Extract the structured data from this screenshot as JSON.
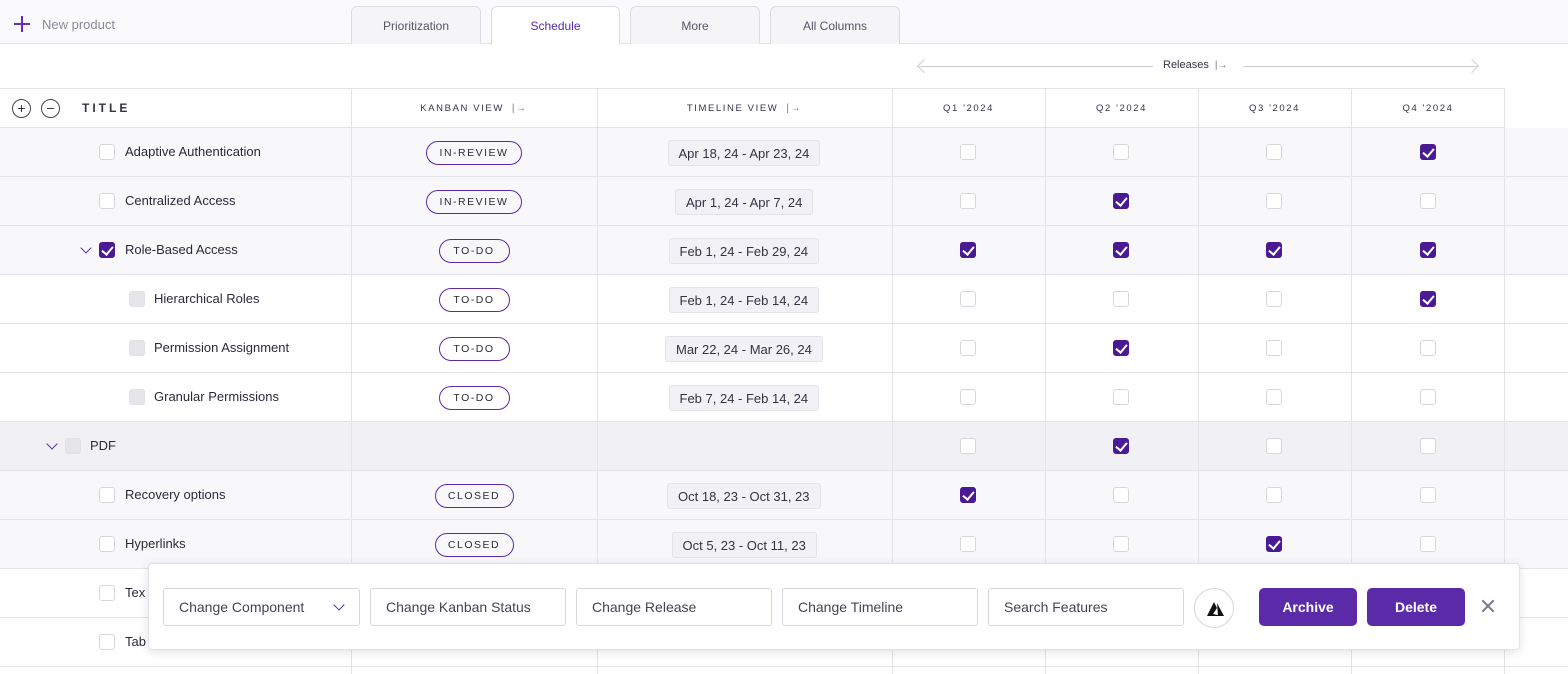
{
  "topbar": {
    "new_product_label": "New product",
    "tabs": [
      {
        "label": "Prioritization",
        "active": false
      },
      {
        "label": "Schedule",
        "active": true
      },
      {
        "label": "More",
        "active": false
      },
      {
        "label": "All Columns",
        "active": false
      }
    ]
  },
  "releases": {
    "label": "Releases"
  },
  "headers": {
    "title": "TITLE",
    "kanban": "KANBAN VIEW",
    "timeline": "TIMELINE VIEW",
    "quarters": [
      "Q1 '2024",
      "Q2 '2024",
      "Q3 '2024",
      "Q4 '2024"
    ]
  },
  "rows": [
    {
      "title": "Adaptive Authentication",
      "level": 1,
      "status": "IN-REVIEW",
      "timeline": "Apr 18, 24 - Apr 23, 24",
      "quarters": [
        false,
        false,
        false,
        true
      ],
      "checked": false,
      "style": "shaded"
    },
    {
      "title": "Centralized Access",
      "level": 1,
      "status": "IN-REVIEW",
      "timeline": "Apr 1, 24 - Apr 7, 24",
      "quarters": [
        false,
        true,
        false,
        false
      ],
      "checked": false,
      "style": "shaded"
    },
    {
      "title": "Role-Based Access",
      "level": 1,
      "status": "TO-DO",
      "timeline": "Feb 1, 24 - Feb 29, 24",
      "quarters": [
        true,
        true,
        true,
        true
      ],
      "checked": true,
      "expanded": true,
      "style": "shaded"
    },
    {
      "title": "Hierarchical Roles",
      "level": 2,
      "status": "TO-DO",
      "timeline": "Feb 1, 24 - Feb 14, 24",
      "quarters": [
        false,
        false,
        false,
        true
      ],
      "checked": false,
      "style": "plain"
    },
    {
      "title": "Permission Assignment",
      "level": 2,
      "status": "TO-DO",
      "timeline": "Mar 22, 24 - Mar 26, 24",
      "quarters": [
        false,
        true,
        false,
        false
      ],
      "checked": false,
      "style": "plain"
    },
    {
      "title": "Granular Permissions",
      "level": 2,
      "status": "TO-DO",
      "timeline": "Feb 7, 24 - Feb 14, 24",
      "quarters": [
        false,
        false,
        false,
        false
      ],
      "checked": false,
      "style": "plain"
    },
    {
      "title": "PDF",
      "level": 0,
      "status": "",
      "timeline": "",
      "quarters": [
        false,
        true,
        false,
        false
      ],
      "checked": false,
      "expanded": true,
      "style": "group"
    },
    {
      "title": "Recovery options",
      "level": 1,
      "status": "CLOSED",
      "timeline": "Oct 18, 23 - Oct 31, 23",
      "quarters": [
        true,
        false,
        false,
        false
      ],
      "checked": false,
      "style": "shaded"
    },
    {
      "title": "Hyperlinks",
      "level": 1,
      "status": "CLOSED",
      "timeline": "Oct 5, 23 - Oct 11, 23",
      "quarters": [
        false,
        false,
        true,
        false
      ],
      "checked": false,
      "style": "shaded"
    },
    {
      "title": "Tex",
      "level": 1,
      "status": "",
      "timeline": "",
      "quarters": [
        false,
        false,
        false,
        false
      ],
      "checked": false,
      "style": "plain"
    },
    {
      "title": "Tab",
      "level": 1,
      "status": "",
      "timeline": "",
      "quarters": [
        false,
        true,
        false,
        false
      ],
      "checked": false,
      "style": "plain"
    }
  ],
  "actionbar": {
    "change_component": "Change Component",
    "change_kanban_status": "Change Kanban Status",
    "change_release": "Change Release",
    "change_timeline": "Change Timeline",
    "search_features": "Search Features",
    "archive": "Archive",
    "delete": "Delete"
  },
  "colors": {
    "accent": "#5a2aa8",
    "checkbox": "#4a1a94"
  }
}
